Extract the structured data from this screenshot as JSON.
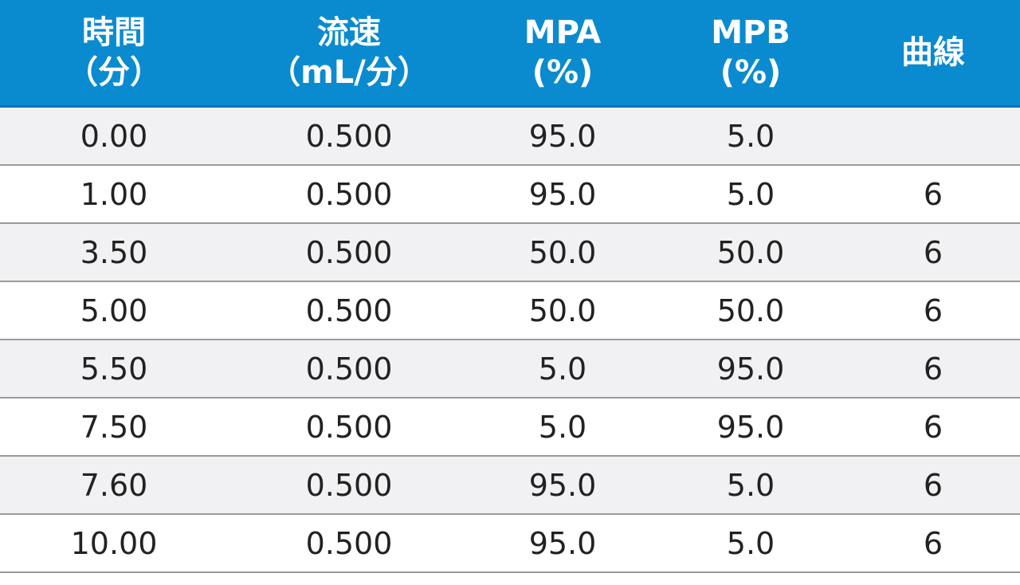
{
  "table": {
    "headers": [
      "時間\n（分）",
      "流速\n（mL/分）",
      "MPA\n(%)",
      "MPB\n(%)",
      "曲線"
    ],
    "rows": [
      [
        "0.00",
        "0.500",
        "95.0",
        "5.0",
        ""
      ],
      [
        "1.00",
        "0.500",
        "95.0",
        "5.0",
        "6"
      ],
      [
        "3.50",
        "0.500",
        "50.0",
        "50.0",
        "6"
      ],
      [
        "5.00",
        "0.500",
        "50.0",
        "50.0",
        "6"
      ],
      [
        "5.50",
        "0.500",
        "5.0",
        "95.0",
        "6"
      ],
      [
        "7.50",
        "0.500",
        "5.0",
        "95.0",
        "6"
      ],
      [
        "7.60",
        "0.500",
        "95.0",
        "5.0",
        "6"
      ],
      [
        "10.00",
        "0.500",
        "95.0",
        "5.0",
        "6"
      ]
    ]
  },
  "colors": {
    "header_bg": "#0a8bd0",
    "row_alt_bg": "#f1f1f3",
    "row_bg": "#ffffff"
  }
}
